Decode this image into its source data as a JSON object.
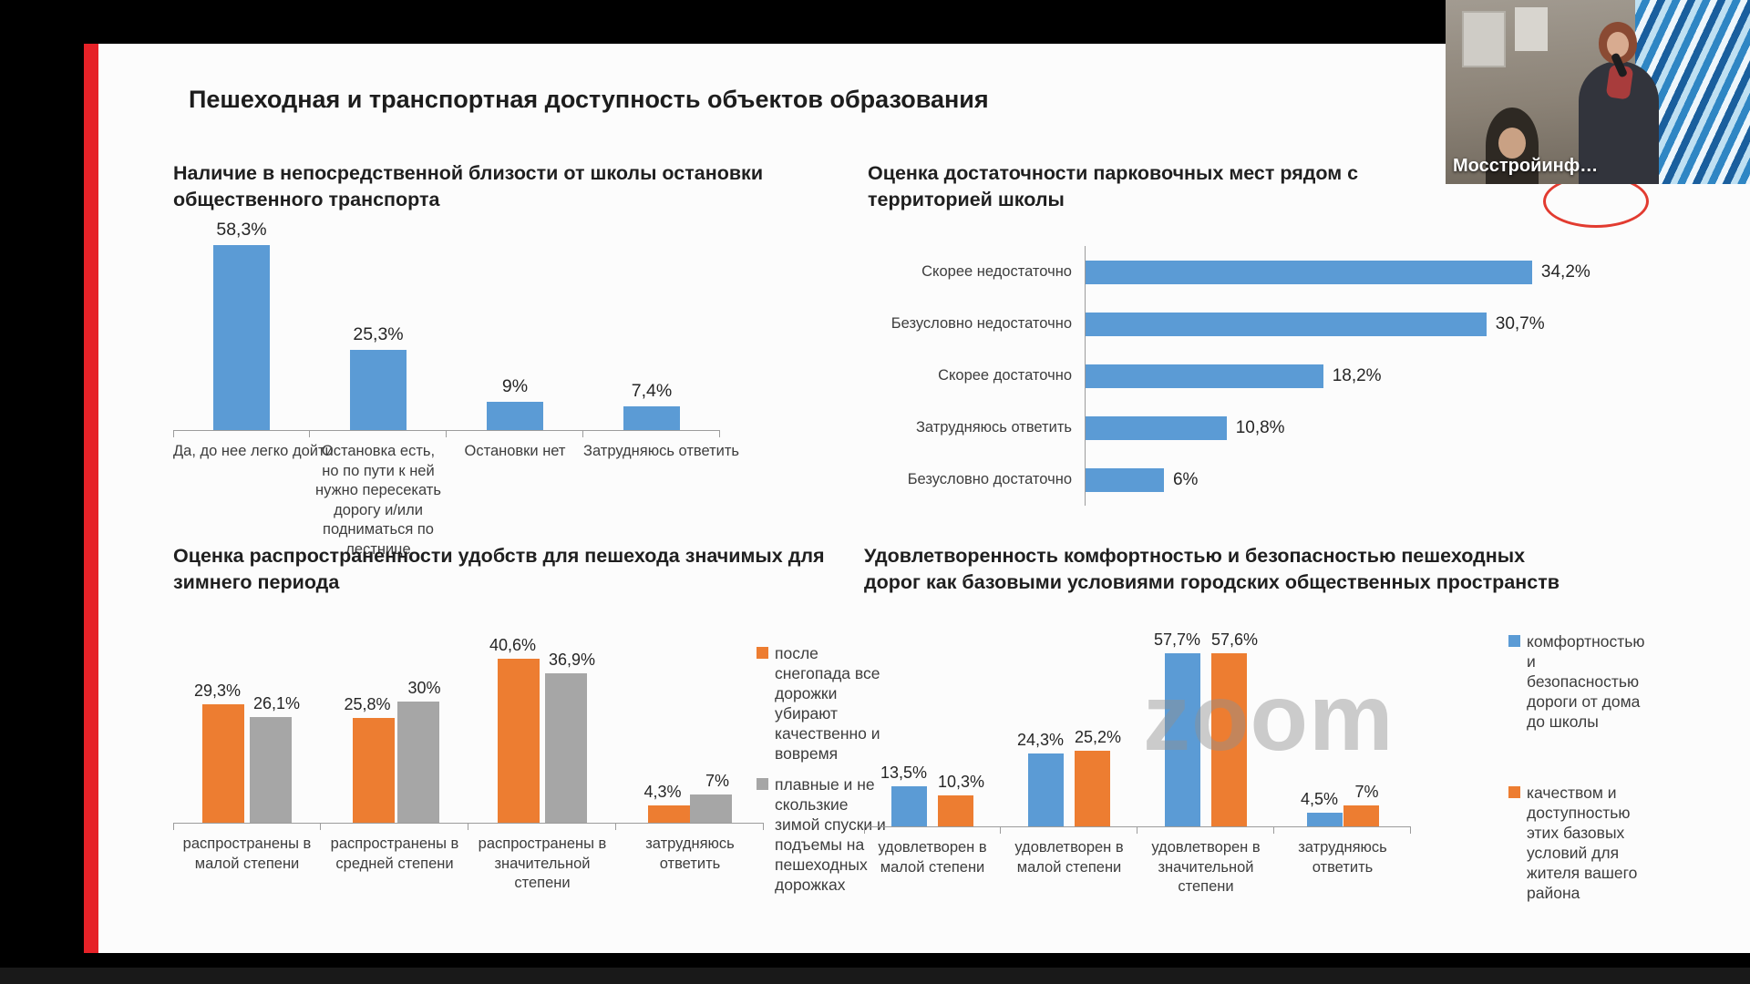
{
  "meeting": {
    "watermark": "zoom",
    "participant": {
      "name_label": "Мосстройинф…"
    }
  },
  "slide": {
    "title": "Пешеходная и транспортная доступность объектов образования",
    "accent_color": "#e62228"
  },
  "chart_data": [
    {
      "id": "bus-stop-availability",
      "type": "bar",
      "title": "Наличие в непосредственной близости от школы остановки\nобщественного транспорта",
      "categories": [
        "Да, до нее легко дойти",
        "Остановка есть, но по пути к ней нужно пересекать дорогу и/или подниматься по лестнице",
        "Остановки нет",
        "Затрудняюсь ответить"
      ],
      "values": [
        58.3,
        25.3,
        9,
        7.4
      ],
      "value_labels": [
        "58,3%",
        "25,3%",
        "9%",
        "7,4%"
      ],
      "bar_color": "#5b9bd5",
      "ylim": [
        0,
        65
      ],
      "grid": false,
      "legend_position": "none"
    },
    {
      "id": "parking-sufficiency",
      "type": "bar-horizontal",
      "title": "Оценка достаточности парковочных мест рядом с\nтерриторией школы",
      "categories": [
        "Скорее недостаточно",
        "Безусловно недостаточно",
        "Скорее достаточно",
        "Затрудняюсь ответить",
        "Безусловно достаточно"
      ],
      "values": [
        34.2,
        30.7,
        18.2,
        10.8,
        6
      ],
      "value_labels": [
        "34,2%",
        "30,7%",
        "18,2%",
        "10,8%",
        "6%"
      ],
      "bar_color": "#5b9bd5",
      "xlim": [
        0,
        40
      ],
      "grid": false,
      "legend_position": "none"
    },
    {
      "id": "winter-amenities",
      "type": "grouped-bar",
      "title": "Оценка распространенности удобств для пешехода значимых для\nзимнего периода",
      "categories": [
        "распространены в малой степени",
        "распространены в средней степени",
        "распространены в значительной степени",
        "затрудняюсь ответить"
      ],
      "series": [
        {
          "name": "после снегопада все дорожки убирают качественно и вовремя",
          "color": "#ed7d31",
          "values": [
            29.3,
            25.8,
            40.6,
            4.3
          ],
          "value_labels": [
            "29,3%",
            "25,8%",
            "40,6%",
            "4,3%"
          ]
        },
        {
          "name": "плавные и не скользкие зимой спуски и подъемы на пешеходных дорожках",
          "color": "#a6a6a6",
          "values": [
            26.1,
            30,
            36.9,
            7
          ],
          "value_labels": [
            "26,1%",
            "30%",
            "36,9%",
            "7%"
          ]
        }
      ],
      "ylim": [
        0,
        45
      ],
      "grid": false,
      "legend_position": "right"
    },
    {
      "id": "walkway-satisfaction",
      "type": "grouped-bar",
      "title": "Удовлетворенность комфортностью и безопасностью пешеходных\nдорог как базовыми условиями городских общественных пространств",
      "categories": [
        "удовлетворен в малой степени",
        "удовлетворен в малой степени",
        "удовлетворен в значительной степени",
        "затрудняюсь ответить"
      ],
      "series": [
        {
          "name": "комфортностью и безопасностью дороги от дома до школы",
          "color": "#5b9bd5",
          "values": [
            13.5,
            24.3,
            57.7,
            4.5
          ],
          "value_labels": [
            "13,5%",
            "24,3%",
            "57,7%",
            "4,5%"
          ]
        },
        {
          "name": "качеством и доступностью этих базовых условий для жителя вашего района",
          "color": "#ed7d31",
          "values": [
            10.3,
            25.2,
            57.6,
            7
          ],
          "value_labels": [
            "10,3%",
            "25,2%",
            "57,6%",
            "7%"
          ]
        }
      ],
      "ylim": [
        0,
        65
      ],
      "grid": false,
      "legend_position": "right"
    }
  ]
}
